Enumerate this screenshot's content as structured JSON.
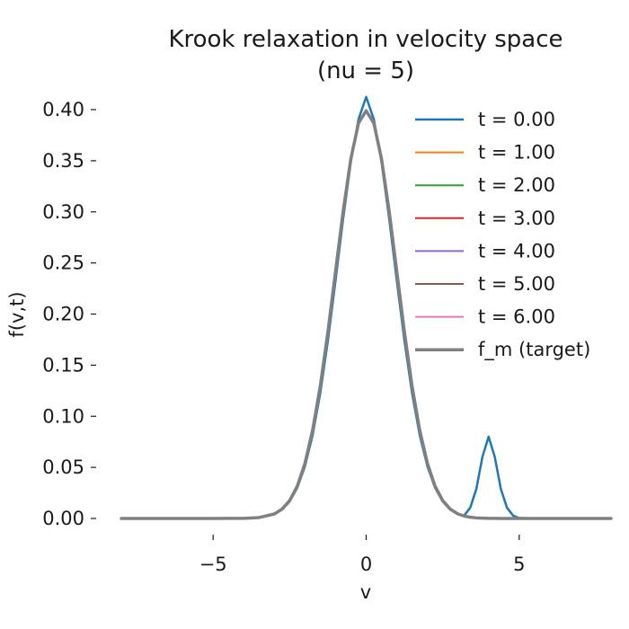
{
  "chart_data": {
    "type": "line",
    "title": "Krook relaxation in velocity space",
    "subtitle": "(nu = 5)",
    "xlabel": "v",
    "ylabel": "f(v,t)",
    "xlim": [
      -8,
      8
    ],
    "ylim": [
      0,
      0.4
    ],
    "xticks": [
      -5,
      0,
      5
    ],
    "xtick_labels": [
      "−5",
      "0",
      "5"
    ],
    "yticks": [
      0,
      0.05,
      0.1,
      0.15,
      0.2,
      0.25,
      0.3,
      0.35,
      0.4
    ],
    "ytick_labels": [
      "0.00",
      "0.05",
      "0.10",
      "0.15",
      "0.20",
      "0.25",
      "0.30",
      "0.35",
      "0.40"
    ],
    "grid": false,
    "legend_position": "top-right",
    "x": [
      -8,
      -7.5,
      -7,
      -6.5,
      -6,
      -5.5,
      -5,
      -4.5,
      -4,
      -3.5,
      -3,
      -2.75,
      -2.5,
      -2.25,
      -2,
      -1.75,
      -1.5,
      -1.25,
      -1,
      -0.75,
      -0.5,
      -0.25,
      0,
      0.25,
      0.5,
      0.75,
      1,
      1.25,
      1.5,
      1.75,
      2,
      2.25,
      2.5,
      2.75,
      3,
      3.2,
      3.4,
      3.6,
      3.8,
      4,
      4.2,
      4.4,
      4.6,
      4.8,
      5,
      5.5,
      6,
      6.5,
      7,
      7.5,
      8
    ],
    "series": [
      {
        "name": "t = 0.00",
        "color": "#1f77b4",
        "width": 2.5,
        "values": [
          0,
          0,
          0,
          0,
          0,
          0,
          0,
          0.0001,
          0.0001,
          0.0008,
          0.0042,
          0.0086,
          0.0166,
          0.0301,
          0.051,
          0.0815,
          0.1226,
          0.1741,
          0.233,
          0.2938,
          0.349,
          0.3906,
          0.4124,
          0.3906,
          0.349,
          0.2938,
          0.233,
          0.1741,
          0.1226,
          0.0815,
          0.051,
          0.0301,
          0.0166,
          0.0086,
          0.0042,
          0.0028,
          0.0106,
          0.0289,
          0.0605,
          0.08,
          0.0605,
          0.0289,
          0.0106,
          0.0028,
          0.0005,
          0,
          0,
          0,
          0,
          0,
          0
        ]
      },
      {
        "name": "t = 1.00",
        "color": "#ff7f0e",
        "width": 2.0,
        "values": [
          0,
          0,
          0,
          0,
          0,
          0,
          0,
          0.0001,
          0.0001,
          0.0009,
          0.0044,
          0.0091,
          0.0175,
          0.0317,
          0.054,
          0.0863,
          0.1295,
          0.1826,
          0.242,
          0.3011,
          0.3521,
          0.3867,
          0.3989,
          0.3867,
          0.3521,
          0.3011,
          0.242,
          0.1826,
          0.1295,
          0.0863,
          0.054,
          0.0317,
          0.0175,
          0.0091,
          0.0044,
          0.0024,
          0.0012,
          0.0006,
          0.0003,
          0.0001,
          0.0001,
          0,
          0,
          0,
          0,
          0,
          0,
          0,
          0,
          0,
          0
        ]
      },
      {
        "name": "t = 2.00",
        "color": "#2ca02c",
        "width": 2.0,
        "values": [
          0,
          0,
          0,
          0,
          0,
          0,
          0,
          0.0001,
          0.0001,
          0.0009,
          0.0044,
          0.0091,
          0.0175,
          0.0317,
          0.054,
          0.0863,
          0.1295,
          0.1826,
          0.242,
          0.3011,
          0.3521,
          0.3867,
          0.3989,
          0.3867,
          0.3521,
          0.3011,
          0.242,
          0.1826,
          0.1295,
          0.0863,
          0.054,
          0.0317,
          0.0175,
          0.0091,
          0.0044,
          0.0024,
          0.0012,
          0.0006,
          0.0003,
          0.0001,
          0.0001,
          0,
          0,
          0,
          0,
          0,
          0,
          0,
          0,
          0,
          0
        ]
      },
      {
        "name": "t = 3.00",
        "color": "#d62728",
        "width": 2.0,
        "values": [
          0,
          0,
          0,
          0,
          0,
          0,
          0,
          0.0001,
          0.0001,
          0.0009,
          0.0044,
          0.0091,
          0.0175,
          0.0317,
          0.054,
          0.0863,
          0.1295,
          0.1826,
          0.242,
          0.3011,
          0.3521,
          0.3867,
          0.3989,
          0.3867,
          0.3521,
          0.3011,
          0.242,
          0.1826,
          0.1295,
          0.0863,
          0.054,
          0.0317,
          0.0175,
          0.0091,
          0.0044,
          0.0024,
          0.0012,
          0.0006,
          0.0003,
          0.0001,
          0.0001,
          0,
          0,
          0,
          0,
          0,
          0,
          0,
          0,
          0,
          0
        ]
      },
      {
        "name": "t = 4.00",
        "color": "#9467bd",
        "width": 2.0,
        "values": [
          0,
          0,
          0,
          0,
          0,
          0,
          0,
          0.0001,
          0.0001,
          0.0009,
          0.0044,
          0.0091,
          0.0175,
          0.0317,
          0.054,
          0.0863,
          0.1295,
          0.1826,
          0.242,
          0.3011,
          0.3521,
          0.3867,
          0.3989,
          0.3867,
          0.3521,
          0.3011,
          0.242,
          0.1826,
          0.1295,
          0.0863,
          0.054,
          0.0317,
          0.0175,
          0.0091,
          0.0044,
          0.0024,
          0.0012,
          0.0006,
          0.0003,
          0.0001,
          0.0001,
          0,
          0,
          0,
          0,
          0,
          0,
          0,
          0,
          0,
          0
        ]
      },
      {
        "name": "t = 5.00",
        "color": "#8c564b",
        "width": 2.0,
        "values": [
          0,
          0,
          0,
          0,
          0,
          0,
          0,
          0.0001,
          0.0001,
          0.0009,
          0.0044,
          0.0091,
          0.0175,
          0.0317,
          0.054,
          0.0863,
          0.1295,
          0.1826,
          0.242,
          0.3011,
          0.3521,
          0.3867,
          0.3989,
          0.3867,
          0.3521,
          0.3011,
          0.242,
          0.1826,
          0.1295,
          0.0863,
          0.054,
          0.0317,
          0.0175,
          0.0091,
          0.0044,
          0.0024,
          0.0012,
          0.0006,
          0.0003,
          0.0001,
          0.0001,
          0,
          0,
          0,
          0,
          0,
          0,
          0,
          0,
          0,
          0
        ]
      },
      {
        "name": "t = 6.00",
        "color": "#e377c2",
        "width": 2.0,
        "values": [
          0,
          0,
          0,
          0,
          0,
          0,
          0,
          0.0001,
          0.0001,
          0.0009,
          0.0044,
          0.0091,
          0.0175,
          0.0317,
          0.054,
          0.0863,
          0.1295,
          0.1826,
          0.242,
          0.3011,
          0.3521,
          0.3867,
          0.3989,
          0.3867,
          0.3521,
          0.3011,
          0.242,
          0.1826,
          0.1295,
          0.0863,
          0.054,
          0.0317,
          0.0175,
          0.0091,
          0.0044,
          0.0024,
          0.0012,
          0.0006,
          0.0003,
          0.0001,
          0.0001,
          0,
          0,
          0,
          0,
          0,
          0,
          0,
          0,
          0,
          0
        ]
      },
      {
        "name": "f_m (target)",
        "color": "#808080",
        "width": 3.5,
        "values": [
          0,
          0,
          0,
          0,
          0,
          0,
          0,
          0.0001,
          0.0001,
          0.0009,
          0.0044,
          0.0091,
          0.0175,
          0.0317,
          0.054,
          0.0863,
          0.1295,
          0.1826,
          0.242,
          0.3011,
          0.3521,
          0.3867,
          0.3989,
          0.3867,
          0.3521,
          0.3011,
          0.242,
          0.1826,
          0.1295,
          0.0863,
          0.054,
          0.0317,
          0.0175,
          0.0091,
          0.0044,
          0.0024,
          0.0012,
          0.0006,
          0.0003,
          0.0001,
          0.0001,
          0,
          0,
          0,
          0,
          0,
          0,
          0,
          0,
          0,
          0
        ]
      }
    ],
    "draw_order": [
      1,
      2,
      3,
      4,
      5,
      6,
      0,
      7
    ]
  }
}
